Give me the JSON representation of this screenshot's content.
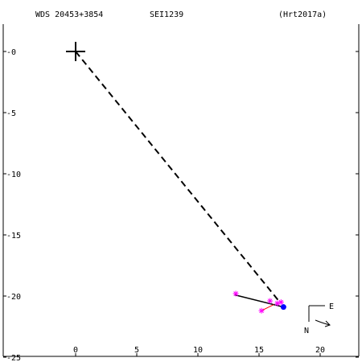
{
  "header": {
    "wds": "WDS 20453+3854",
    "discoverer": "SEI1239",
    "reference": "(Hrt2017a)"
  },
  "compass": {
    "east": "E",
    "north": "N"
  },
  "colors": {
    "ink": "#000000",
    "observations": "#ff00ff",
    "residuals": "#ff0000",
    "latest": "#0000ff"
  },
  "chart_data": {
    "type": "scatter",
    "title": "",
    "xlabel": "",
    "ylabel": "",
    "xlim": [
      -6.2,
      23.5
    ],
    "ylim": [
      -25,
      3.5
    ],
    "x_ticks": [
      0,
      5,
      10,
      15,
      20
    ],
    "x_tick_labels": [
      "0",
      "5",
      "10",
      "15",
      "20"
    ],
    "y_ticks": [
      0,
      -5,
      -10,
      -15,
      -20,
      -25
    ],
    "y_tick_labels": [
      "-0",
      "-5",
      "-10",
      "-15",
      "-20",
      "-25"
    ],
    "primary": {
      "x": 0,
      "y": 0
    },
    "dashed_line": {
      "x1": 0,
      "y1": 0,
      "x2": 16.7,
      "y2": -20.5
    },
    "orbit_segment": {
      "x1": 13.0,
      "y1": -19.9,
      "x2": 17.0,
      "y2": -20.9
    },
    "observations": [
      {
        "x": 13.1,
        "y": -19.8
      },
      {
        "x": 15.9,
        "y": -20.4
      },
      {
        "x": 16.5,
        "y": -20.6
      },
      {
        "x": 16.8,
        "y": -20.5
      },
      {
        "x": 15.2,
        "y": -21.2
      }
    ],
    "residuals": [
      {
        "x1": 15.2,
        "y1": -21.2,
        "x2": 16.2,
        "y2": -20.7
      }
    ],
    "latest_point": {
      "x": 17.0,
      "y": -20.9
    }
  }
}
